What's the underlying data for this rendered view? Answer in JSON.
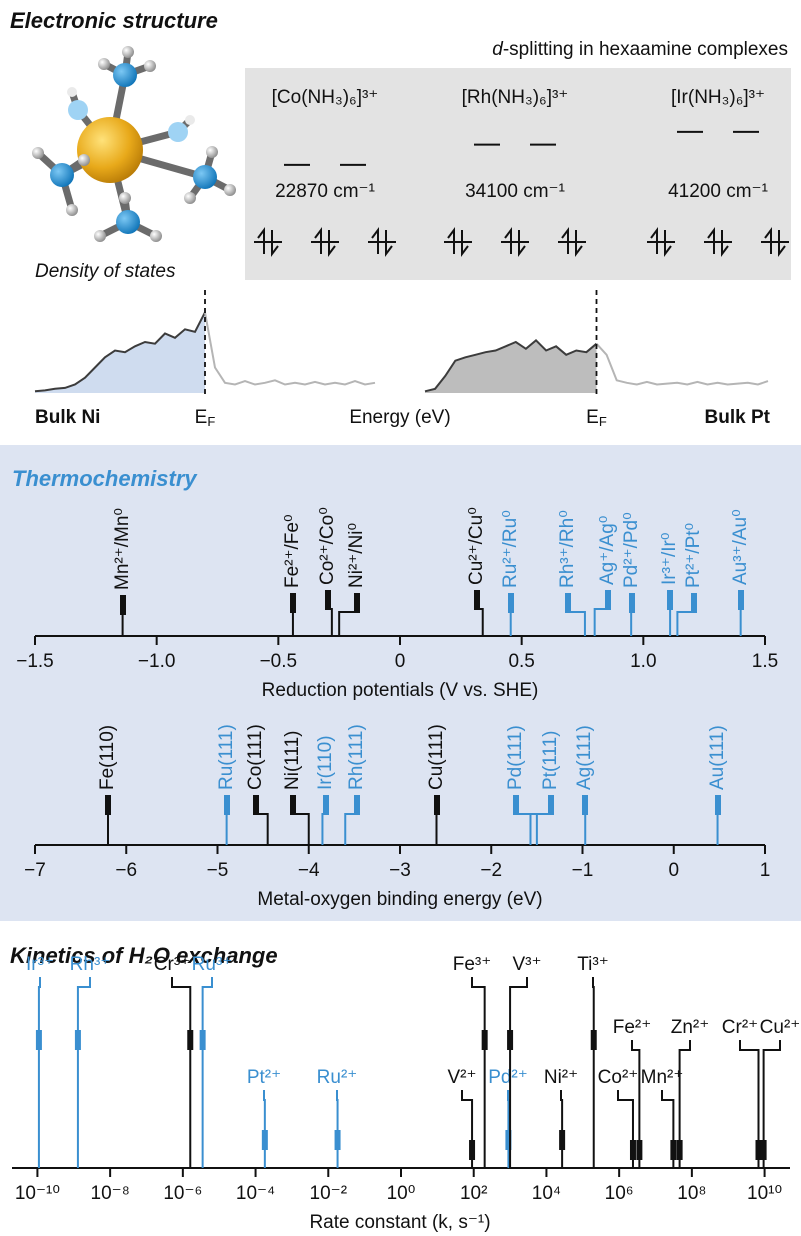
{
  "header": {
    "electronic_title": "Electronic structure",
    "dos_title": "Density of states",
    "energy_label": "Energy (eV)",
    "thermo_title": "Thermochemistry",
    "kinetics_title": "Kinetics of H₂O exchange"
  },
  "d_splitting": {
    "title_italic": "d",
    "title": "-splitting in hexaamine complexes",
    "categories": [
      "[Co(NH₃)₆]³⁺",
      "[Rh(NH₃)₆]³⁺",
      "[Ir(NH₃)₆]³⁺"
    ],
    "values": [
      22870,
      34100,
      41200
    ],
    "value_labels": [
      "22870 cm⁻¹",
      "34100 cm⁻¹",
      "41200 cm⁻¹"
    ]
  },
  "chart_data": [
    {
      "type": "dos",
      "label": "Bulk Ni",
      "fermi_label": {
        "text": "E",
        "sub": "F"
      },
      "series": [
        {
          "color": "#3c3c3c",
          "fill": "#cfdcef",
          "values": [
            0.02,
            0.03,
            0.05,
            0.06,
            0.1,
            0.18,
            0.3,
            0.42,
            0.5,
            0.48,
            0.55,
            0.6,
            0.58,
            0.7,
            0.65,
            0.75,
            0.72,
            0.95,
            null,
            null,
            null,
            null,
            null,
            null,
            null,
            null,
            null,
            null,
            null,
            null,
            null,
            null,
            null,
            null,
            null
          ]
        },
        {
          "color": "#b5b5b5",
          "values": [
            null,
            null,
            null,
            null,
            null,
            null,
            null,
            null,
            null,
            null,
            null,
            null,
            null,
            null,
            null,
            null,
            null,
            0.95,
            0.3,
            0.12,
            0.1,
            0.14,
            0.1,
            0.12,
            0.15,
            0.1,
            0.12,
            0.1,
            0.13,
            0.1,
            0.12,
            0.1,
            0.14,
            0.1,
            0.12
          ]
        }
      ]
    },
    {
      "type": "dos",
      "label": "Bulk Pt",
      "fermi_label": {
        "text": "E",
        "sub": "F"
      },
      "series": [
        {
          "color": "#3c3c3c",
          "fill": "#bdbdbd",
          "values": [
            0.02,
            0.05,
            0.2,
            0.38,
            0.42,
            0.45,
            0.48,
            0.5,
            0.55,
            0.6,
            0.52,
            0.62,
            0.5,
            0.55,
            0.45,
            0.5,
            0.48,
            0.58,
            null,
            null,
            null,
            null,
            null,
            null,
            null,
            null,
            null,
            null,
            null,
            null,
            null,
            null,
            null,
            null,
            null
          ]
        },
        {
          "color": "#b5b5b5",
          "values": [
            null,
            null,
            null,
            null,
            null,
            null,
            null,
            null,
            null,
            null,
            null,
            null,
            null,
            null,
            null,
            null,
            null,
            0.58,
            0.45,
            0.15,
            0.12,
            0.1,
            0.13,
            0.1,
            0.11,
            0.12,
            0.1,
            0.13,
            0.1,
            0.12,
            0.1,
            0.11,
            0.12,
            0.1,
            0.14
          ]
        }
      ]
    },
    {
      "type": "numberline",
      "xlabel": "Reduction potentials (V vs. SHE)",
      "categories": [
        "Mn²⁺/Mn⁰",
        "Fe²⁺/Fe⁰",
        "Co²⁺/Co⁰",
        "Ni²⁺/Ni⁰",
        "Cu²⁺/Cu⁰",
        "Ru²⁺/Ru⁰",
        "Rh³⁺/Rh⁰",
        "Ag⁺/Ag⁰",
        "Pd²⁺/Pd⁰",
        "Ir³⁺/Ir⁰",
        "Pt²⁺/Pt⁰",
        "Au³⁺/Au⁰"
      ],
      "values": [
        -1.14,
        -0.44,
        -0.28,
        -0.25,
        0.34,
        0.455,
        0.76,
        0.8,
        0.95,
        1.11,
        1.14,
        1.4
      ],
      "colors": [
        "#111111",
        "#111111",
        "#111111",
        "#111111",
        "#111111",
        "#3a8fd0",
        "#3a8fd0",
        "#3a8fd0",
        "#3a8fd0",
        "#3a8fd0",
        "#3a8fd0",
        "#3a8fd0"
      ],
      "xlim": [
        -1.5,
        1.5
      ],
      "xticks": [
        {
          "value": -1.5,
          "label": "−1.5"
        },
        {
          "value": -1,
          "label": "−1.0"
        },
        {
          "value": -0.5,
          "label": "−0.5"
        },
        0,
        0.5,
        {
          "value": 1,
          "label": "1.0"
        },
        1.5
      ]
    },
    {
      "type": "numberline",
      "xlabel": "Metal-oxygen binding energy (eV)",
      "categories": [
        "Fe(110)",
        "Ru(111)",
        "Co(111)",
        "Ni(111)",
        "Ir(110)",
        "Rh(111)",
        "Cu(111)",
        "Pd(111)",
        "Pt(111)",
        "Ag(111)",
        "Au(111)"
      ],
      "values": [
        -6.2,
        -4.9,
        -4.45,
        -4.0,
        -3.85,
        -3.6,
        -2.6,
        -1.5,
        -1.57,
        -0.97,
        0.48
      ],
      "colors": [
        "#111111",
        "#3a8fd0",
        "#111111",
        "#111111",
        "#3a8fd0",
        "#3a8fd0",
        "#111111",
        "#3a8fd0",
        "#3a8fd0",
        "#3a8fd0",
        "#3a8fd0"
      ],
      "xlim": [
        -7,
        1
      ],
      "xticks": [
        {
          "value": -7,
          "label": "−7"
        },
        {
          "value": -6,
          "label": "−6"
        },
        {
          "value": -5,
          "label": "−5"
        },
        {
          "value": -4,
          "label": "−4"
        },
        {
          "value": -3,
          "label": "−3"
        },
        {
          "value": -2,
          "label": "−2"
        },
        {
          "value": -1,
          "label": "−1"
        },
        0,
        1
      ]
    },
    {
      "type": "numberline",
      "xscale": "log",
      "xlabel": "Rate constant (k, s⁻¹)",
      "categories": [
        "Ir³⁺",
        "Rh³⁺",
        "Cr³⁺",
        "Ru³⁺",
        "Pt²⁺",
        "Ru²⁺",
        "V²⁺",
        "Fe³⁺",
        "Pd²⁺",
        "V³⁺",
        "Ni²⁺",
        "Ti³⁺",
        "Co²⁺",
        "Fe²⁺",
        "Mn²⁺",
        "Zn²⁺",
        "Cr²⁺",
        "Cu²⁺"
      ],
      "values": [
        1.1e-10,
        1.3e-09,
        1.6e-06,
        3.5e-06,
        0.00018,
        0.018,
        90,
        200,
        900,
        1000,
        27000,
        200000,
        2400000,
        3600000,
        31000000,
        46000000,
        6800000000,
        9400000000
      ],
      "colors": [
        "#3a8fd0",
        "#3a8fd0",
        "#111111",
        "#3a8fd0",
        "#3a8fd0",
        "#3a8fd0",
        "#111111",
        "#111111",
        "#3a8fd0",
        "#111111",
        "#111111",
        "#111111",
        "#111111",
        "#111111",
        "#111111",
        "#111111",
        "#111111",
        "#111111"
      ],
      "xlim": [
        2e-11,
        50000000000.0
      ],
      "xticks": [
        {
          "value": 1e-10,
          "label": "10⁻¹⁰"
        },
        {
          "value": 1e-08,
          "label": "10⁻⁸"
        },
        {
          "value": 1e-06,
          "label": "10⁻⁶"
        },
        {
          "value": 0.0001,
          "label": "10⁻⁴"
        },
        {
          "value": 0.01,
          "label": "10⁻²"
        },
        {
          "value": 1,
          "label": "10⁰"
        },
        {
          "value": 100,
          "label": "10²"
        },
        {
          "value": 10000,
          "label": "10⁴"
        },
        {
          "value": 1000000,
          "label": "10⁶"
        },
        {
          "value": 100000000,
          "label": "10⁸"
        },
        {
          "value": 10000000000,
          "label": "10¹⁰"
        }
      ]
    }
  ]
}
